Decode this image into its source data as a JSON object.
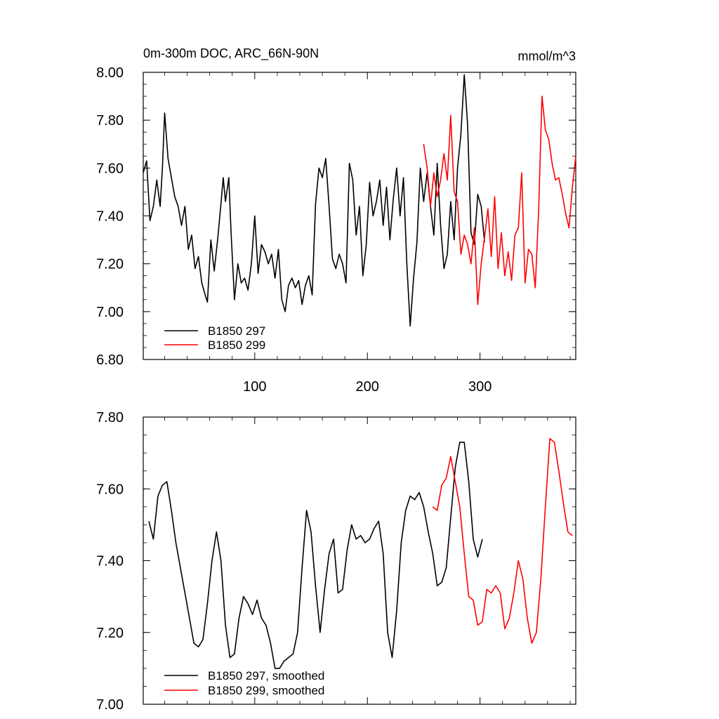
{
  "chart_data": [
    {
      "type": "line",
      "title": "0m-300m DOC, ARC_66N-90N",
      "units_label": "mmol/m^3",
      "xlabel": "",
      "ylabel": "",
      "xlim": [
        1,
        385
      ],
      "ylim": [
        6.8,
        8.0
      ],
      "x_tick_labels": [
        "100",
        "200",
        "300"
      ],
      "x_ticks": [
        100,
        200,
        300
      ],
      "y_tick_labels": [
        "6.80",
        "7.00",
        "7.20",
        "7.40",
        "7.60",
        "7.80",
        "8.00"
      ],
      "y_ticks": [
        6.8,
        7.0,
        7.2,
        7.4,
        7.6,
        7.8,
        8.0
      ],
      "legend": [
        "B1850 297",
        "B1850 299"
      ],
      "legend_position": "bottom-left",
      "series": [
        {
          "name": "B1850 297",
          "color": "#000000",
          "x": [
            1,
            4,
            7,
            10,
            13,
            16,
            18,
            20,
            23,
            26,
            29,
            32,
            35,
            38,
            41,
            44,
            47,
            50,
            53,
            56,
            58,
            61,
            64,
            67,
            70,
            72,
            74,
            77,
            79,
            82,
            85,
            88,
            91,
            94,
            97,
            100,
            103,
            106,
            109,
            112,
            115,
            118,
            121,
            124,
            127,
            130,
            133,
            136,
            139,
            142,
            145,
            148,
            151,
            154,
            157,
            160,
            163,
            166,
            169,
            172,
            175,
            178,
            181,
            184,
            187,
            190,
            193,
            196,
            199,
            202,
            205,
            208,
            211,
            214,
            217,
            220,
            223,
            226,
            229,
            232,
            235,
            238,
            241,
            244,
            247,
            250,
            253,
            256,
            259,
            262,
            265,
            268,
            271,
            274,
            277,
            280,
            283,
            286,
            289,
            292,
            295,
            298,
            301,
            304
          ],
          "y": [
            7.58,
            7.63,
            7.38,
            7.44,
            7.55,
            7.44,
            7.6,
            7.83,
            7.64,
            7.56,
            7.48,
            7.44,
            7.36,
            7.44,
            7.26,
            7.32,
            7.18,
            7.23,
            7.12,
            7.07,
            7.04,
            7.3,
            7.17,
            7.3,
            7.45,
            7.56,
            7.46,
            7.56,
            7.33,
            7.05,
            7.2,
            7.12,
            7.14,
            7.09,
            7.2,
            7.4,
            7.16,
            7.28,
            7.25,
            7.2,
            7.24,
            7.14,
            7.26,
            7.05,
            7.0,
            7.11,
            7.14,
            7.1,
            7.13,
            7.03,
            7.11,
            7.15,
            7.07,
            7.45,
            7.6,
            7.56,
            7.64,
            7.44,
            7.22,
            7.18,
            7.24,
            7.2,
            7.12,
            7.62,
            7.55,
            7.32,
            7.44,
            7.15,
            7.28,
            7.54,
            7.4,
            7.46,
            7.55,
            7.36,
            7.52,
            7.3,
            7.47,
            7.6,
            7.4,
            7.56,
            7.2,
            6.94,
            7.14,
            7.29,
            7.6,
            7.46,
            7.58,
            7.44,
            7.32,
            7.62,
            7.36,
            7.18,
            7.24,
            7.46,
            7.3,
            7.6,
            7.74,
            7.99,
            7.78,
            7.33,
            7.28,
            7.49,
            7.44,
            7.29
          ]
        },
        {
          "name": "B1850 299",
          "color": "#ff0000",
          "x": [
            250,
            253,
            256,
            259,
            262,
            265,
            268,
            271,
            274,
            277,
            280,
            283,
            286,
            289,
            292,
            295,
            298,
            301,
            304,
            307,
            310,
            313,
            316,
            319,
            322,
            325,
            328,
            331,
            334,
            337,
            340,
            343,
            346,
            349,
            352,
            355,
            358,
            361,
            364,
            367,
            370,
            373,
            376,
            379,
            382,
            385
          ],
          "y": [
            7.7,
            7.6,
            7.44,
            7.58,
            7.48,
            7.55,
            7.66,
            7.55,
            7.82,
            7.5,
            7.46,
            7.24,
            7.32,
            7.28,
            7.2,
            7.35,
            7.03,
            7.2,
            7.31,
            7.43,
            7.23,
            7.48,
            7.18,
            7.33,
            7.15,
            7.25,
            7.13,
            7.32,
            7.35,
            7.58,
            7.12,
            7.26,
            7.24,
            7.1,
            7.42,
            7.9,
            7.76,
            7.72,
            7.62,
            7.55,
            7.56,
            7.49,
            7.41,
            7.35,
            7.52,
            7.65
          ]
        }
      ]
    },
    {
      "type": "line",
      "title": "",
      "xlabel": "",
      "ylabel": "",
      "xlim": [
        1,
        385
      ],
      "ylim": [
        7.0,
        7.8
      ],
      "y_tick_labels": [
        "7.00",
        "7.20",
        "7.40",
        "7.60",
        "7.80"
      ],
      "y_ticks": [
        7.0,
        7.2,
        7.4,
        7.6,
        7.8
      ],
      "legend": [
        "B1850 297, smoothed",
        "B1850 299, smoothed"
      ],
      "legend_position": "bottom-left",
      "series": [
        {
          "name": "B1850 297, smoothed",
          "color": "#000000",
          "x": [
            6,
            10,
            14,
            18,
            22,
            26,
            30,
            34,
            38,
            42,
            46,
            50,
            54,
            58,
            62,
            66,
            70,
            74,
            78,
            82,
            86,
            90,
            94,
            98,
            102,
            106,
            110,
            114,
            118,
            122,
            126,
            130,
            134,
            138,
            142,
            146,
            150,
            154,
            158,
            162,
            166,
            170,
            174,
            178,
            182,
            186,
            190,
            194,
            198,
            202,
            206,
            210,
            214,
            218,
            222,
            226,
            230,
            234,
            238,
            242,
            246,
            250,
            254,
            258,
            262,
            266,
            270,
            274,
            278,
            282,
            286,
            290,
            294,
            298,
            302
          ],
          "y": [
            7.51,
            7.46,
            7.58,
            7.61,
            7.62,
            7.54,
            7.45,
            7.38,
            7.31,
            7.24,
            7.17,
            7.16,
            7.18,
            7.28,
            7.4,
            7.48,
            7.4,
            7.22,
            7.13,
            7.14,
            7.24,
            7.3,
            7.28,
            7.25,
            7.29,
            7.24,
            7.22,
            7.17,
            7.1,
            7.1,
            7.12,
            7.13,
            7.14,
            7.2,
            7.38,
            7.54,
            7.48,
            7.33,
            7.2,
            7.32,
            7.42,
            7.46,
            7.31,
            7.32,
            7.43,
            7.5,
            7.46,
            7.47,
            7.45,
            7.46,
            7.49,
            7.51,
            7.42,
            7.2,
            7.13,
            7.26,
            7.45,
            7.54,
            7.58,
            7.57,
            7.59,
            7.55,
            7.48,
            7.42,
            7.33,
            7.34,
            7.38,
            7.52,
            7.66,
            7.73,
            7.73,
            7.62,
            7.46,
            7.41,
            7.46
          ]
        },
        {
          "name": "B1850 299, smoothed",
          "color": "#ff0000",
          "x": [
            258,
            262,
            266,
            270,
            274,
            278,
            282,
            286,
            290,
            294,
            298,
            302,
            306,
            310,
            314,
            318,
            322,
            326,
            330,
            334,
            338,
            342,
            346,
            350,
            354,
            358,
            362,
            366,
            370,
            374,
            378,
            382
          ],
          "y": [
            7.55,
            7.54,
            7.61,
            7.63,
            7.69,
            7.62,
            7.55,
            7.42,
            7.3,
            7.29,
            7.22,
            7.23,
            7.32,
            7.31,
            7.33,
            7.31,
            7.21,
            7.24,
            7.31,
            7.4,
            7.35,
            7.24,
            7.17,
            7.2,
            7.35,
            7.55,
            7.74,
            7.73,
            7.65,
            7.56,
            7.48,
            7.47
          ]
        }
      ]
    }
  ]
}
